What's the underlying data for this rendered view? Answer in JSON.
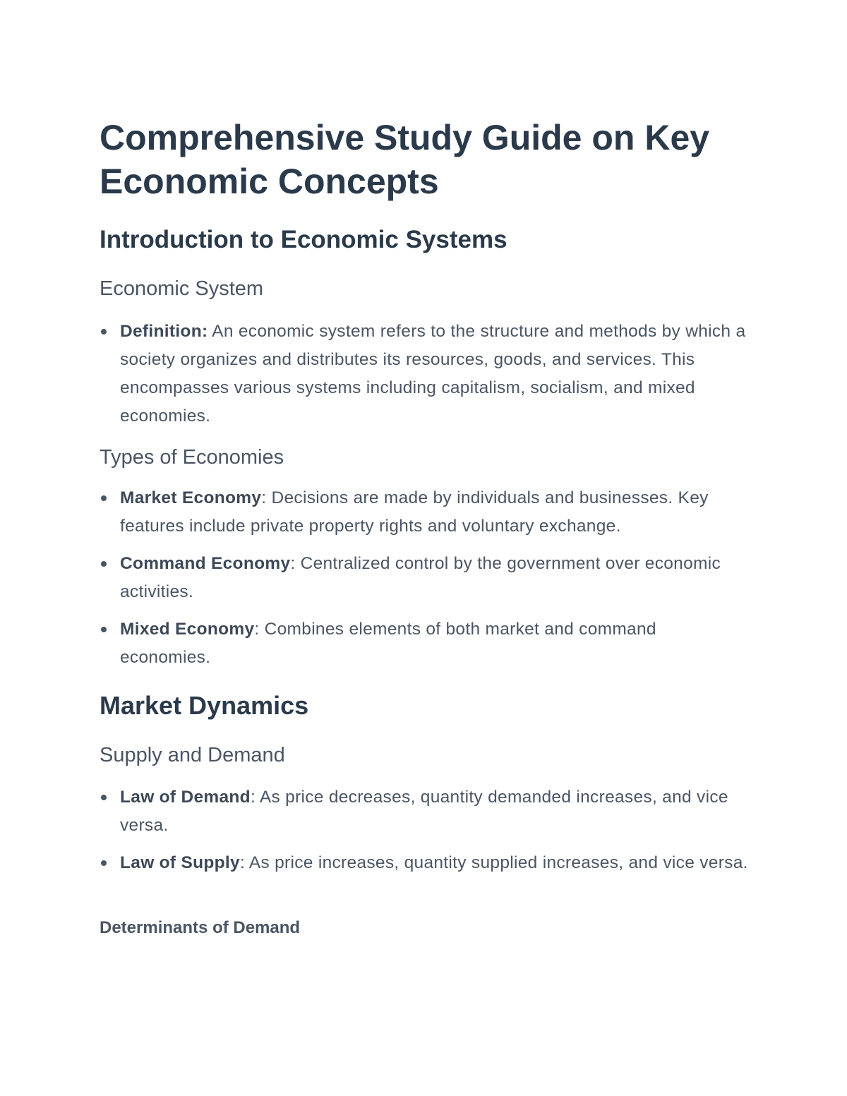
{
  "title": "Comprehensive Study Guide on Key Economic Concepts",
  "sections": [
    {
      "heading": "Introduction to Economic Systems",
      "subsections": [
        {
          "heading": "Economic System",
          "items": [
            {
              "term": "Definition:",
              "text": " An economic system refers to the structure and methods by which a society organizes and distributes its resources, goods, and services. This encompasses various systems including capitalism, socialism, and mixed economies."
            }
          ]
        },
        {
          "heading": "Types of Economies",
          "items": [
            {
              "term": "Market Economy",
              "text": ": Decisions are made by individuals and businesses. Key features include private property rights and voluntary exchange."
            },
            {
              "term": "Command Economy",
              "text": ": Centralized control by the government over economic activities."
            },
            {
              "term": "Mixed Economy",
              "text": ": Combines elements of both market and command economies."
            }
          ]
        }
      ]
    },
    {
      "heading": "Market Dynamics",
      "subsections": [
        {
          "heading": "Supply and Demand",
          "items": [
            {
              "term": "Law of Demand",
              "text": ": As price decreases, quantity demanded increases, and vice versa."
            },
            {
              "term": "Law of Supply",
              "text": ": As price increases, quantity supplied increases, and vice versa."
            }
          ]
        }
      ],
      "subheading": "Determinants of Demand"
    }
  ],
  "colors": {
    "heading": "#2b3a4a",
    "body": "#4a5563",
    "background": "#ffffff"
  }
}
